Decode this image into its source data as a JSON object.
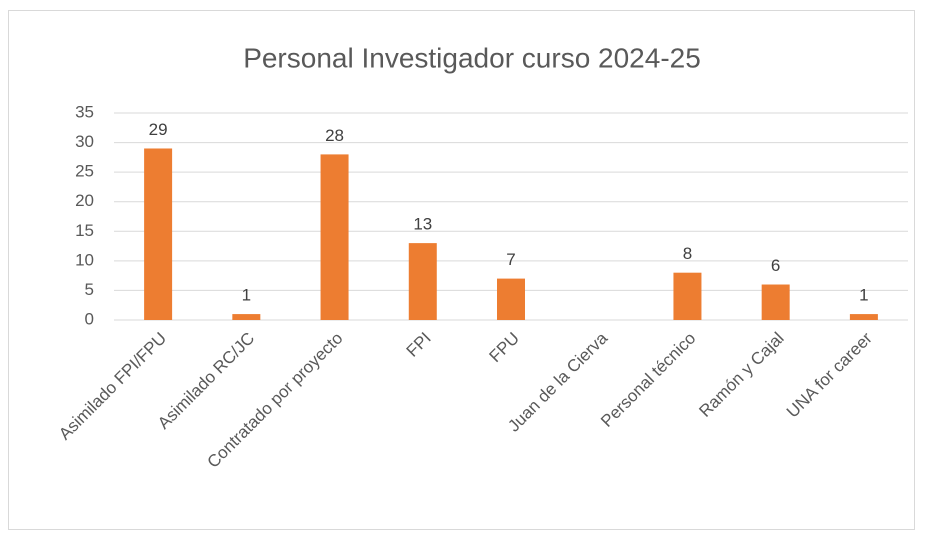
{
  "chart_data": {
    "type": "bar",
    "title": "Personal Investigador curso 2024-25",
    "categories": [
      "Asimilado FPI/FPU",
      "Asimilado RC/JC",
      "Contratado por proyecto",
      "FPI",
      "FPU",
      "Juan de la Cierva",
      "Personal técnico",
      "Ramón y Cajal",
      "UNA for career"
    ],
    "values": [
      29,
      1,
      28,
      13,
      7,
      null,
      8,
      6,
      1
    ],
    "color": "#ed7d31",
    "ylim": [
      0,
      35
    ],
    "yticks": [
      0,
      5,
      10,
      15,
      20,
      25,
      30,
      35
    ],
    "grid": true
  }
}
